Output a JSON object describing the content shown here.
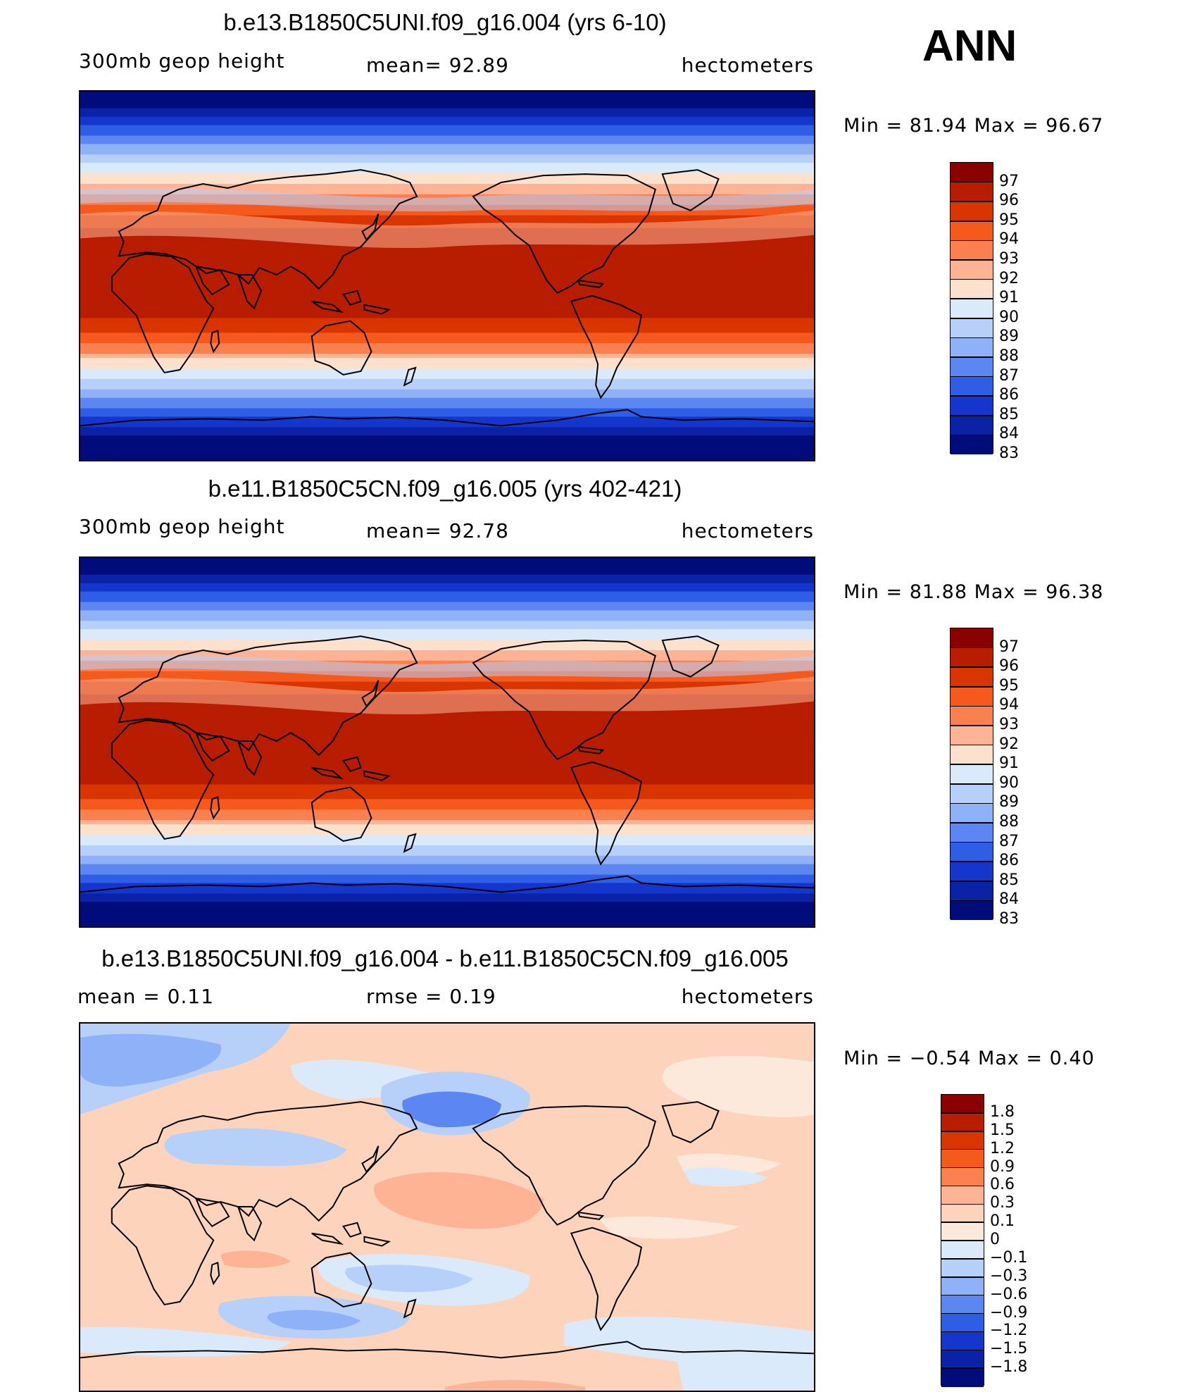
{
  "season": "ANN",
  "panels": [
    {
      "title": "b.e13.B1850C5UNI.f09_g16.004 (yrs 6-10)",
      "left_label": "300mb  geop  height",
      "mid_label": "mean=   92.89",
      "right_label": "hectometers",
      "minmax": "Min  =   81.94  Max  =   96.67",
      "kind": "abs",
      "colorbar": {
        "colors": [
          "#8a0000",
          "#b81d00",
          "#d93500",
          "#f55a1c",
          "#fb8050",
          "#fdb394",
          "#fde1cc",
          "#dbeafb",
          "#b6d0fa",
          "#8fb1f7",
          "#5c86f1",
          "#2f5ee6",
          "#1436cc",
          "#0a22a6",
          "#000c7a"
        ],
        "labels": [
          "97",
          "96",
          "95",
          "94",
          "93",
          "92",
          "91",
          "90",
          "89",
          "88",
          "87",
          "86",
          "85",
          "84",
          "83"
        ]
      },
      "chart_data": {
        "type": "map",
        "variable": "300mb geop height",
        "units": "hectometers",
        "mean": 92.89,
        "min": 81.94,
        "max": 96.67,
        "levels": [
          83,
          84,
          85,
          86,
          87,
          88,
          89,
          90,
          91,
          92,
          93,
          94,
          95,
          96,
          97
        ]
      }
    },
    {
      "title": "b.e11.B1850C5CN.f09_g16.005 (yrs 402-421)",
      "left_label": "300mb  geop  height",
      "mid_label": "mean=   92.78",
      "right_label": "hectometers",
      "minmax": "Min  =   81.88  Max  =   96.38",
      "kind": "abs",
      "colorbar": {
        "colors": [
          "#8a0000",
          "#b81d00",
          "#d93500",
          "#f55a1c",
          "#fb8050",
          "#fdb394",
          "#fde1cc",
          "#dbeafb",
          "#b6d0fa",
          "#8fb1f7",
          "#5c86f1",
          "#2f5ee6",
          "#1436cc",
          "#0a22a6",
          "#000c7a"
        ],
        "labels": [
          "97",
          "96",
          "95",
          "94",
          "93",
          "92",
          "91",
          "90",
          "89",
          "88",
          "87",
          "86",
          "85",
          "84",
          "83"
        ]
      },
      "chart_data": {
        "type": "map",
        "variable": "300mb geop height",
        "units": "hectometers",
        "mean": 92.78,
        "min": 81.88,
        "max": 96.38,
        "levels": [
          83,
          84,
          85,
          86,
          87,
          88,
          89,
          90,
          91,
          92,
          93,
          94,
          95,
          96,
          97
        ]
      }
    },
    {
      "title": "b.e13.B1850C5UNI.f09_g16.004 - b.e11.B1850C5CN.f09_g16.005",
      "left_label": "mean  =     0.11",
      "mid_label": "rmse  =     0.19",
      "right_label": "hectometers",
      "minmax": "Min  =   −0.54  Max  =     0.40",
      "kind": "diff",
      "colorbar": {
        "colors": [
          "#8a0000",
          "#b81d00",
          "#d93500",
          "#f55a1c",
          "#fb8050",
          "#fdb394",
          "#fdd4bb",
          "#fde9dc",
          "#dbeafb",
          "#b6d0fa",
          "#8fb1f7",
          "#5c86f1",
          "#2f5ee6",
          "#1436cc",
          "#0a22a6",
          "#000c7a"
        ],
        "labels": [
          "1.8",
          "1.5",
          "1.2",
          "0.9",
          "0.6",
          "0.3",
          "0.1",
          "0",
          "−0.1",
          "−0.3",
          "−0.6",
          "−0.9",
          "−1.2",
          "−1.5",
          "−1.8"
        ]
      },
      "chart_data": {
        "type": "map",
        "variable": "300mb geop height difference",
        "units": "hectometers",
        "mean": 0.11,
        "rmse": 0.19,
        "min": -0.54,
        "max": 0.4,
        "levels": [
          -1.8,
          -1.5,
          -1.2,
          -0.9,
          -0.6,
          -0.3,
          -0.1,
          0,
          0.1,
          0.3,
          0.6,
          0.9,
          1.2,
          1.5,
          1.8
        ]
      }
    }
  ]
}
